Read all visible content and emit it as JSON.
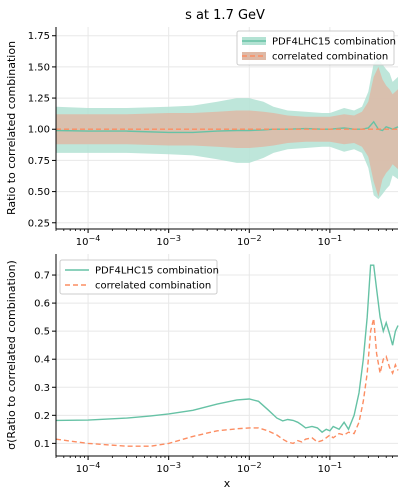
{
  "title": "s at 1.7 GeV",
  "colors": {
    "pdf4lhc": "#66c2a5",
    "correlated": "#fc8d62",
    "pdf4lhc_band": "#b3e2d3",
    "correlated_band": "#deb9a6",
    "grid": "#e8e8e8"
  },
  "chart_data": [
    {
      "type": "area",
      "xscale": "log",
      "xlim": [
        4e-05,
        0.7
      ],
      "ylim": [
        0.2,
        1.82
      ],
      "ylabel": "Ratio to correlated combination",
      "xticks": [
        {
          "value": 0.0001,
          "label": "10^-4"
        },
        {
          "value": 0.001,
          "label": "10^-3"
        },
        {
          "value": 0.01,
          "label": "10^-2"
        },
        {
          "value": 0.1,
          "label": "10^-1"
        }
      ],
      "yticks": [
        0.25,
        0.5,
        0.75,
        1.0,
        1.25,
        1.5,
        1.75
      ],
      "ytick_labels": [
        "0.25",
        "0.50",
        "0.75",
        "1.00",
        "1.25",
        "1.50",
        "1.75"
      ],
      "grid": true,
      "legend_position": "top-right",
      "series": [
        {
          "name": "PDF4LHC15 combination",
          "style": "solid",
          "x": [
            4e-05,
            0.0001,
            0.0003,
            0.001,
            0.002,
            0.004,
            0.007,
            0.01,
            0.015,
            0.02,
            0.03,
            0.05,
            0.08,
            0.1,
            0.15,
            0.2,
            0.25,
            0.3,
            0.35,
            0.4,
            0.45,
            0.5,
            0.55,
            0.6,
            0.7
          ],
          "center": [
            0.99,
            0.985,
            0.985,
            0.975,
            0.975,
            0.985,
            0.99,
            0.99,
            0.995,
            1.0,
            1.0,
            1.005,
            1.0,
            1.0,
            1.01,
            1.0,
            1.0,
            1.01,
            1.06,
            1.0,
            0.99,
            1.02,
            1.01,
            1.0,
            1.02
          ],
          "upper": [
            1.18,
            1.17,
            1.17,
            1.18,
            1.19,
            1.22,
            1.25,
            1.25,
            1.22,
            1.18,
            1.15,
            1.14,
            1.13,
            1.13,
            1.17,
            1.15,
            1.18,
            1.3,
            1.53,
            1.56,
            1.52,
            1.48,
            1.45,
            1.38,
            1.42
          ],
          "lower": [
            0.81,
            0.81,
            0.81,
            0.8,
            0.79,
            0.76,
            0.73,
            0.73,
            0.77,
            0.81,
            0.84,
            0.85,
            0.86,
            0.86,
            0.82,
            0.84,
            0.81,
            0.69,
            0.47,
            0.44,
            0.48,
            0.52,
            0.55,
            0.63,
            0.6
          ]
        },
        {
          "name": "correlated combination",
          "style": "dashed",
          "x": [
            4e-05,
            0.0001,
            0.0003,
            0.001,
            0.002,
            0.004,
            0.007,
            0.01,
            0.015,
            0.02,
            0.03,
            0.05,
            0.08,
            0.1,
            0.15,
            0.2,
            0.25,
            0.3,
            0.35,
            0.4,
            0.45,
            0.5,
            0.55,
            0.6,
            0.7
          ],
          "center": [
            1.0,
            1.0,
            1.0,
            1.0,
            1.0,
            1.0,
            1.0,
            1.0,
            1.0,
            1.0,
            1.0,
            1.0,
            1.0,
            1.0,
            1.0,
            1.0,
            1.0,
            1.0,
            1.0,
            1.0,
            1.0,
            1.0,
            1.0,
            1.0,
            1.0
          ],
          "upper": [
            1.12,
            1.12,
            1.12,
            1.13,
            1.13,
            1.14,
            1.15,
            1.15,
            1.14,
            1.13,
            1.11,
            1.1,
            1.1,
            1.1,
            1.12,
            1.11,
            1.14,
            1.22,
            1.42,
            1.5,
            1.4,
            1.35,
            1.32,
            1.28,
            1.32
          ],
          "lower": [
            0.88,
            0.88,
            0.88,
            0.87,
            0.87,
            0.86,
            0.85,
            0.85,
            0.86,
            0.87,
            0.89,
            0.9,
            0.9,
            0.9,
            0.88,
            0.89,
            0.86,
            0.78,
            0.58,
            0.46,
            0.6,
            0.65,
            0.68,
            0.72,
            0.68
          ]
        }
      ]
    },
    {
      "type": "line",
      "xscale": "log",
      "xlim": [
        4e-05,
        0.7
      ],
      "ylim": [
        0.055,
        0.775
      ],
      "xlabel": "x",
      "ylabel": "σ(Ratio to correlated combination)",
      "xticks": [
        {
          "value": 0.0001,
          "label": "10^-4"
        },
        {
          "value": 0.001,
          "label": "10^-3"
        },
        {
          "value": 0.01,
          "label": "10^-2"
        },
        {
          "value": 0.1,
          "label": "10^-1"
        }
      ],
      "yticks": [
        0.1,
        0.2,
        0.3,
        0.4,
        0.5,
        0.6,
        0.7
      ],
      "ytick_labels": [
        "0.1",
        "0.2",
        "0.3",
        "0.4",
        "0.5",
        "0.6",
        "0.7"
      ],
      "grid": true,
      "legend_position": "top-left",
      "series": [
        {
          "name": "PDF4LHC15 combination",
          "style": "solid",
          "x": [
            4e-05,
            0.0001,
            0.0003,
            0.0006,
            0.001,
            0.002,
            0.004,
            0.007,
            0.01,
            0.013,
            0.017,
            0.022,
            0.026,
            0.03,
            0.035,
            0.04,
            0.045,
            0.05,
            0.06,
            0.07,
            0.08,
            0.09,
            0.1,
            0.11,
            0.13,
            0.15,
            0.17,
            0.2,
            0.23,
            0.26,
            0.29,
            0.32,
            0.35,
            0.38,
            0.42,
            0.46,
            0.5,
            0.55,
            0.6,
            0.65,
            0.7
          ],
          "y": [
            0.182,
            0.183,
            0.19,
            0.198,
            0.205,
            0.218,
            0.24,
            0.255,
            0.258,
            0.25,
            0.22,
            0.19,
            0.18,
            0.185,
            0.182,
            0.175,
            0.165,
            0.155,
            0.16,
            0.155,
            0.14,
            0.15,
            0.145,
            0.16,
            0.15,
            0.175,
            0.15,
            0.2,
            0.28,
            0.4,
            0.55,
            0.735,
            0.735,
            0.65,
            0.55,
            0.5,
            0.53,
            0.49,
            0.45,
            0.5,
            0.52
          ]
        },
        {
          "name": "correlated combination",
          "style": "dashed",
          "x": [
            4e-05,
            0.0001,
            0.0003,
            0.0006,
            0.001,
            0.002,
            0.004,
            0.007,
            0.01,
            0.013,
            0.017,
            0.022,
            0.026,
            0.03,
            0.035,
            0.04,
            0.045,
            0.05,
            0.06,
            0.07,
            0.08,
            0.09,
            0.1,
            0.11,
            0.13,
            0.15,
            0.17,
            0.2,
            0.23,
            0.26,
            0.29,
            0.32,
            0.35,
            0.38,
            0.42,
            0.46,
            0.5,
            0.55,
            0.6,
            0.65,
            0.7
          ],
          "y": [
            0.115,
            0.1,
            0.09,
            0.09,
            0.1,
            0.125,
            0.145,
            0.152,
            0.155,
            0.155,
            0.145,
            0.13,
            0.115,
            0.105,
            0.1,
            0.11,
            0.105,
            0.115,
            0.12,
            0.105,
            0.11,
            0.12,
            0.13,
            0.12,
            0.135,
            0.13,
            0.14,
            0.135,
            0.175,
            0.25,
            0.35,
            0.5,
            0.545,
            0.42,
            0.35,
            0.4,
            0.41,
            0.37,
            0.35,
            0.38,
            0.36
          ]
        }
      ]
    }
  ]
}
